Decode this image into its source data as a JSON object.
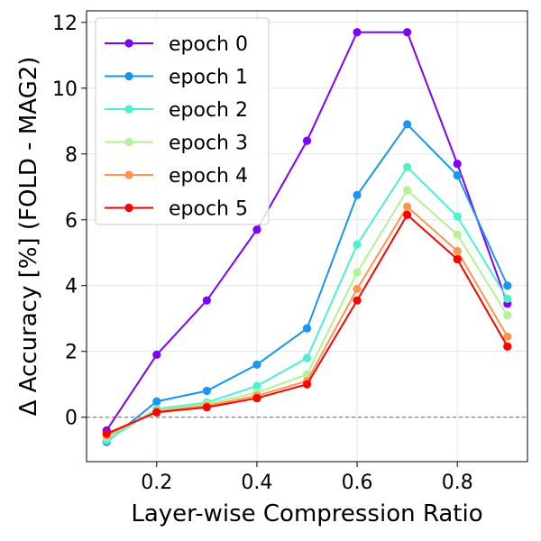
{
  "chart_data": {
    "type": "line",
    "title": "",
    "xlabel": "Layer-wise Compression Ratio",
    "ylabel": "Δ Accuracy [%] (FOLD - MAG2)",
    "x": [
      0.1,
      0.2,
      0.3,
      0.4,
      0.5,
      0.6,
      0.7,
      0.8,
      0.9
    ],
    "xlim": [
      0.06,
      0.94
    ],
    "ylim": [
      -1.35,
      12.35
    ],
    "xticks": [
      0.2,
      0.4,
      0.6,
      0.8
    ],
    "xtick_labels": [
      "0.2",
      "0.4",
      "0.6",
      "0.8"
    ],
    "yticks": [
      0,
      2,
      4,
      6,
      8,
      10,
      12
    ],
    "ytick_labels": [
      "0",
      "2",
      "4",
      "6",
      "8",
      "10",
      "12"
    ],
    "grid": true,
    "reference_line": {
      "y": 0,
      "style": "dashed",
      "color": "#808080"
    },
    "legend_position": "top-left",
    "series": [
      {
        "name": "epoch 0",
        "color": "#8000ff",
        "values": [
          -0.4,
          1.9,
          3.55,
          5.7,
          8.4,
          11.7,
          11.7,
          7.7,
          3.45
        ]
      },
      {
        "name": "epoch 1",
        "color": "#1996f3",
        "values": [
          -0.75,
          0.48,
          0.8,
          1.6,
          2.7,
          6.75,
          8.9,
          7.35,
          4.0
        ]
      },
      {
        "name": "epoch 2",
        "color": "#4cf2ce",
        "values": [
          -0.7,
          0.25,
          0.45,
          0.95,
          1.8,
          5.25,
          7.6,
          6.1,
          3.6
        ]
      },
      {
        "name": "epoch 3",
        "color": "#b2f396",
        "values": [
          -0.6,
          0.2,
          0.4,
          0.75,
          1.3,
          4.4,
          6.9,
          5.55,
          3.1
        ]
      },
      {
        "name": "epoch 4",
        "color": "#ff964f",
        "values": [
          -0.55,
          0.18,
          0.35,
          0.65,
          1.1,
          3.9,
          6.4,
          5.05,
          2.45
        ]
      },
      {
        "name": "epoch 5",
        "color": "#ff0000",
        "values": [
          -0.5,
          0.15,
          0.3,
          0.58,
          1.0,
          3.55,
          6.15,
          4.8,
          2.15
        ]
      }
    ]
  }
}
